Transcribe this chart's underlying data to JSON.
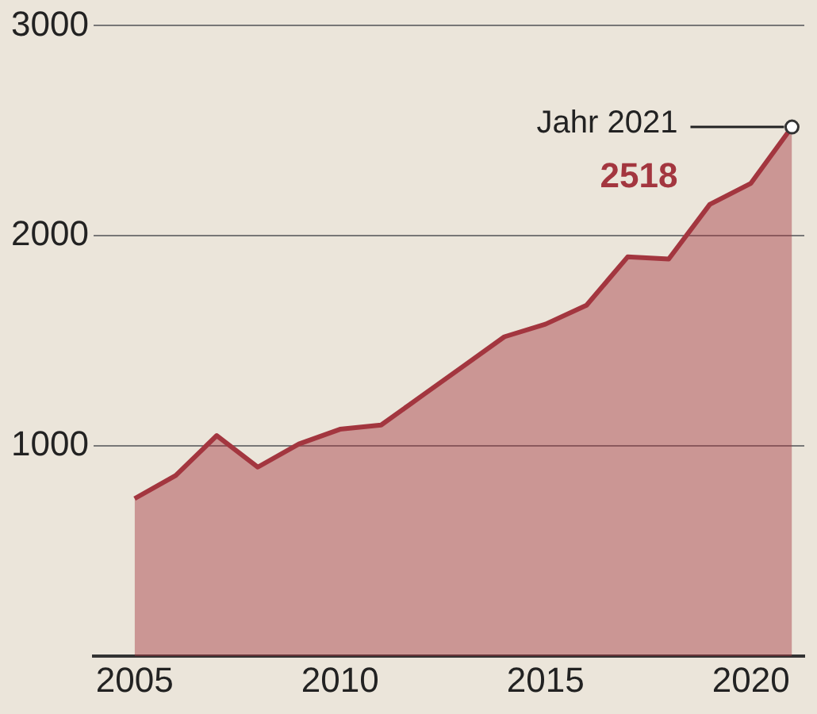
{
  "chart_data": {
    "type": "area",
    "x": [
      2005,
      2006,
      2007,
      2008,
      2009,
      2010,
      2011,
      2012,
      2013,
      2014,
      2015,
      2016,
      2017,
      2018,
      2019,
      2020,
      2021
    ],
    "series": [
      {
        "color": "#a3363f",
        "values": [
          750,
          860,
          1050,
          900,
          1010,
          1080,
          1100,
          1240,
          1380,
          1520,
          1580,
          1670,
          1900,
          1890,
          2150,
          2250,
          2518
        ],
        "value_labels": [
          null,
          null,
          null,
          null,
          null,
          null,
          null,
          null,
          null,
          null,
          null,
          null,
          null,
          null,
          null,
          null,
          "2518"
        ]
      }
    ],
    "annotations": [
      {
        "text": "Jahr 2021",
        "x": 2021,
        "y": 2518
      }
    ],
    "xlim": [
      2004,
      2021.3
    ],
    "xticks": [
      2005,
      2010,
      2015,
      2020
    ],
    "ylim": [
      0,
      3000
    ],
    "yticks": [
      1000,
      2000,
      3000
    ],
    "grid": "y",
    "legend": false
  }
}
